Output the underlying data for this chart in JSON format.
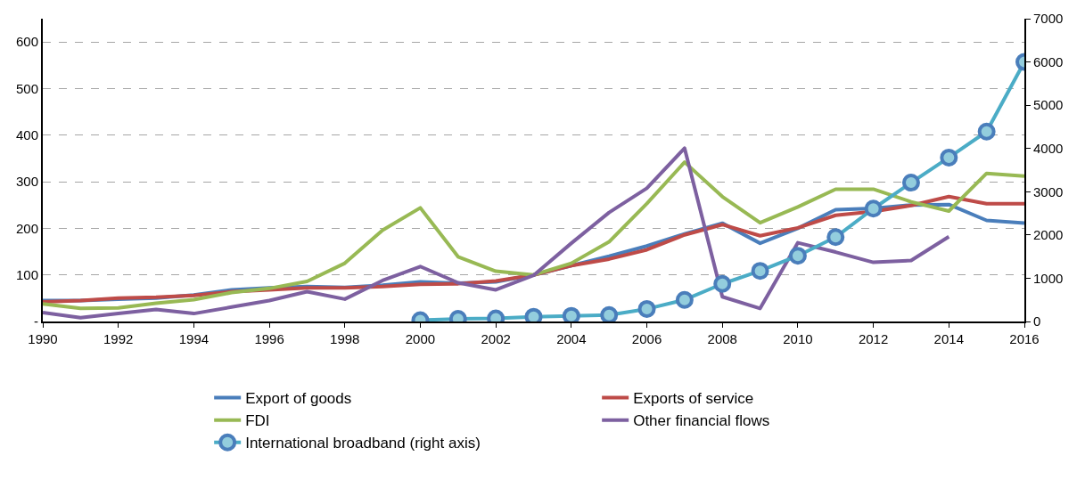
{
  "chart_data": {
    "type": "line",
    "x": [
      1990,
      1991,
      1992,
      1993,
      1994,
      1995,
      1996,
      1997,
      1998,
      1999,
      2000,
      2001,
      2002,
      2003,
      2004,
      2005,
      2006,
      2007,
      2008,
      2009,
      2010,
      2011,
      2012,
      2013,
      2014,
      2015,
      2016
    ],
    "series": [
      {
        "name": "Export of goods",
        "color": "#4a7ebb",
        "values": [
          45,
          45,
          48,
          50,
          57,
          68,
          72,
          75,
          73,
          78,
          85,
          82,
          85,
          100,
          120,
          140,
          162,
          188,
          211,
          168,
          200,
          240,
          243,
          250,
          251,
          217,
          211
        ]
      },
      {
        "name": "Exports of service",
        "color": "#be4b48",
        "values": [
          42,
          45,
          50,
          52,
          56,
          64,
          68,
          72,
          72,
          75,
          80,
          81,
          87,
          100,
          120,
          134,
          154,
          186,
          208,
          184,
          201,
          228,
          236,
          249,
          268,
          253,
          253
        ]
      },
      {
        "name": "FDI",
        "color": "#98b954",
        "values": [
          38,
          28,
          29,
          39,
          47,
          62,
          71,
          86,
          125,
          196,
          244,
          139,
          108,
          100,
          125,
          171,
          253,
          342,
          268,
          212,
          246,
          284,
          284,
          257,
          237,
          318,
          312
        ]
      },
      {
        "name": "Other financial flows",
        "color": "#7d60a0",
        "values": [
          19,
          8,
          17,
          26,
          17,
          31,
          45,
          64,
          48,
          88,
          118,
          83,
          68,
          99,
          168,
          234,
          286,
          372,
          53,
          28,
          169,
          149,
          127,
          131,
          182,
          null,
          null
        ]
      },
      {
        "name": "International broadband (right axis)",
        "color": "#4bacc6",
        "axis": "y2",
        "marker": "circle",
        "values": [
          null,
          null,
          null,
          null,
          null,
          null,
          null,
          null,
          null,
          null,
          30,
          60,
          70,
          110,
          130,
          150,
          290,
          500,
          870,
          1170,
          1520,
          1950,
          2610,
          3210,
          3790,
          4390,
          6000
        ]
      }
    ],
    "xlim": [
      1990,
      2016
    ],
    "xticks": [
      1990,
      1992,
      1994,
      1996,
      1998,
      2000,
      2002,
      2004,
      2006,
      2008,
      2010,
      2012,
      2014,
      2016
    ],
    "ylim": [
      0,
      650
    ],
    "yticks": [
      {
        "value": 0,
        "label": "-"
      },
      100,
      200,
      300,
      400,
      500,
      600
    ],
    "y2lim": [
      0,
      7000
    ],
    "y2ticks": [
      0,
      1000,
      2000,
      3000,
      4000,
      5000,
      6000,
      7000
    ],
    "grid": "y",
    "legend": "bottom",
    "marker": "none",
    "line_style": "solid"
  }
}
